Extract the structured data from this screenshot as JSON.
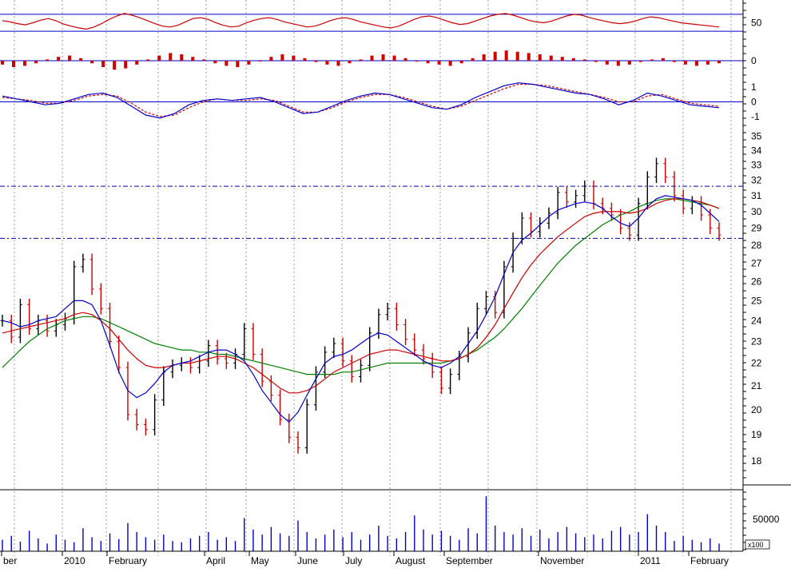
{
  "colors": {
    "background": "#ffffff",
    "price_up": "#000000",
    "price_down": "#cc0000",
    "ma_fast": "#0000cc",
    "ma_mid": "#cc0000",
    "ma_slow": "#008000",
    "osc_line": "#cc0000",
    "macd_line": "#0000cc",
    "macd_signal": "#cc0000",
    "histogram": "#cc0000",
    "volume": "#0000cc",
    "grid": "#999999",
    "ref_lines": "#0000cc",
    "support_resistance": "#0000aa"
  },
  "chart_data": {
    "type": "line",
    "x_axis": {
      "labels": [
        "ber",
        "2010",
        "February",
        "April",
        "May",
        "June",
        "July",
        "August",
        "September",
        "November",
        "2011",
        "February"
      ]
    },
    "oscillator_panel": {
      "tick_labels": [
        "50"
      ],
      "reference_levels": [
        70,
        30
      ],
      "ylim": [
        0,
        100
      ],
      "values": [
        55,
        52,
        48,
        45,
        50,
        56,
        60,
        55,
        47,
        42,
        38,
        35,
        40,
        48,
        58,
        66,
        72,
        68,
        62,
        55,
        48,
        42,
        40,
        44,
        52,
        60,
        62,
        58,
        50,
        44,
        40,
        42,
        50,
        56,
        60,
        62,
        58,
        52,
        48,
        44,
        40,
        42,
        48,
        55,
        60,
        62,
        58,
        52,
        48,
        44,
        40,
        38,
        42,
        50,
        58,
        64,
        66,
        62,
        56,
        50,
        46,
        48,
        54,
        60,
        66,
        70,
        72,
        68,
        62,
        56,
        52,
        50,
        54,
        60,
        66,
        70,
        68,
        62,
        58,
        54,
        50,
        48,
        50,
        54,
        60,
        64,
        62,
        58,
        54,
        50,
        48,
        46,
        44,
        42,
        40
      ]
    },
    "histogram_panel": {
      "tick_labels": [
        "0"
      ],
      "ylim": [
        -1,
        1
      ],
      "values": [
        -0.3,
        -0.5,
        -0.4,
        -0.2,
        0.1,
        0.3,
        0.4,
        0.2,
        -0.2,
        -0.5,
        -0.7,
        -0.6,
        -0.3,
        0.1,
        0.4,
        0.6,
        0.5,
        0.3,
        0.1,
        -0.2,
        -0.4,
        -0.5,
        -0.3,
        0.0,
        0.3,
        0.5,
        0.4,
        0.2,
        -0.1,
        -0.3,
        -0.4,
        -0.2,
        0.1,
        0.4,
        0.5,
        0.4,
        0.2,
        0.0,
        -0.2,
        -0.3,
        -0.4,
        -0.2,
        0.2,
        0.5,
        0.7,
        0.8,
        0.7,
        0.6,
        0.5,
        0.4,
        0.3,
        0.2,
        0.1,
        -0.1,
        -0.3,
        -0.4,
        -0.3,
        -0.1,
        0.1,
        0.2,
        -0.1,
        -0.3,
        -0.4,
        -0.3,
        -0.2
      ]
    },
    "macd_panel": {
      "tick_labels": [
        "1",
        "0",
        "-1"
      ],
      "ylim": [
        -1.5,
        1.5
      ],
      "macd": [
        0.4,
        0.2,
        0.0,
        -0.2,
        -0.1,
        0.2,
        0.5,
        0.6,
        0.3,
        -0.3,
        -0.9,
        -1.1,
        -0.8,
        -0.2,
        0.1,
        0.2,
        0.1,
        0.2,
        0.3,
        0.0,
        -0.4,
        -0.8,
        -0.7,
        -0.3,
        0.1,
        0.4,
        0.6,
        0.5,
        0.2,
        -0.1,
        -0.4,
        -0.5,
        -0.2,
        0.3,
        0.7,
        1.1,
        1.3,
        1.2,
        1.0,
        0.8,
        0.6,
        0.5,
        0.2,
        -0.2,
        0.1,
        0.6,
        0.4,
        0.1,
        -0.2,
        -0.3,
        -0.4
      ],
      "signal": [
        0.3,
        0.2,
        0.1,
        -0.1,
        -0.1,
        0.1,
        0.4,
        0.5,
        0.4,
        -0.1,
        -0.7,
        -1.0,
        -0.9,
        -0.4,
        0.0,
        0.2,
        0.1,
        0.1,
        0.2,
        0.1,
        -0.3,
        -0.7,
        -0.7,
        -0.4,
        0.0,
        0.3,
        0.5,
        0.5,
        0.3,
        0.0,
        -0.3,
        -0.5,
        -0.3,
        0.1,
        0.5,
        0.9,
        1.2,
        1.2,
        1.1,
        0.9,
        0.7,
        0.5,
        0.3,
        0.0,
        0.0,
        0.4,
        0.5,
        0.2,
        -0.1,
        -0.2,
        -0.3
      ]
    },
    "price_panel": {
      "tick_labels": [
        "35",
        "34",
        "33",
        "32",
        "31",
        "30",
        "29",
        "28",
        "27",
        "26",
        "25",
        "24",
        "23",
        "22",
        "21",
        "20",
        "19",
        "18"
      ],
      "ylim": [
        17.2,
        35.5
      ],
      "log_scale": true,
      "support_level": 28.4,
      "resistance_level": 31.6,
      "close": [
        24.0,
        23.2,
        24.8,
        23.6,
        24.0,
        23.5,
        23.8,
        24.1,
        26.8,
        27.2,
        25.6,
        24.6,
        23.0,
        21.8,
        19.8,
        19.4,
        19.2,
        20.4,
        21.6,
        21.9,
        22.0,
        21.8,
        22.1,
        22.8,
        22.2,
        22.0,
        22.4,
        23.6,
        22.4,
        21.2,
        20.6,
        19.6,
        18.9,
        18.5,
        20.2,
        21.6,
        22.5,
        22.9,
        22.1,
        21.4,
        21.9,
        23.4,
        24.3,
        24.6,
        23.8,
        23.1,
        22.6,
        22.2,
        21.6,
        20.9,
        21.5,
        22.3,
        23.4,
        24.6,
        25.2,
        24.4,
        26.8,
        28.4,
        29.6,
        28.8,
        29.3,
        29.9,
        31.2,
        30.6,
        31.0,
        31.6,
        30.5,
        30.2,
        29.8,
        29.0,
        28.6,
        30.5,
        32.2,
        33.1,
        32.2,
        31.0,
        30.2,
        30.6,
        29.8,
        29.0,
        28.6
      ],
      "ma_fast": [
        24.0,
        23.9,
        23.7,
        23.8,
        24.0,
        24.1,
        24.2,
        24.6,
        25.0,
        25.0,
        24.8,
        24.0,
        22.8,
        21.6,
        20.8,
        20.5,
        20.7,
        21.1,
        21.6,
        21.9,
        22.0,
        22.1,
        22.3,
        22.5,
        22.6,
        22.6,
        22.4,
        22.1,
        21.5,
        20.8,
        20.3,
        19.8,
        19.5,
        19.9,
        20.6,
        21.3,
        22.0,
        22.3,
        22.4,
        22.6,
        22.9,
        23.2,
        23.4,
        23.3,
        23.0,
        22.7,
        22.4,
        22.1,
        21.9,
        21.8,
        22.0,
        22.3,
        22.9,
        23.5,
        24.3,
        25.2,
        26.4,
        27.6,
        28.3,
        28.7,
        29.2,
        29.7,
        30.1,
        30.3,
        30.5,
        30.6,
        30.5,
        30.2,
        29.7,
        29.3,
        29.1,
        29.6,
        30.3,
        30.8,
        31.0,
        30.9,
        30.8,
        30.7,
        30.4,
        29.9,
        29.4
      ],
      "ma_mid": [
        23.4,
        23.5,
        23.6,
        23.7,
        23.8,
        23.9,
        24.0,
        24.1,
        24.3,
        24.4,
        24.3,
        24.0,
        23.6,
        23.1,
        22.6,
        22.2,
        21.9,
        21.8,
        21.8,
        21.9,
        22.0,
        22.0,
        22.1,
        22.2,
        22.3,
        22.3,
        22.2,
        22.0,
        21.8,
        21.5,
        21.2,
        20.9,
        20.7,
        20.7,
        20.8,
        21.0,
        21.3,
        21.6,
        21.8,
        22.0,
        22.2,
        22.4,
        22.5,
        22.6,
        22.6,
        22.5,
        22.4,
        22.3,
        22.2,
        22.1,
        22.1,
        22.2,
        22.4,
        22.7,
        23.2,
        23.8,
        24.6,
        25.4,
        26.2,
        26.9,
        27.5,
        28.0,
        28.5,
        28.9,
        29.3,
        29.7,
        29.9,
        30.0,
        30.0,
        30.0,
        29.9,
        30.0,
        30.2,
        30.5,
        30.7,
        30.8,
        30.8,
        30.7,
        30.6,
        30.4,
        30.2
      ],
      "ma_slow": [
        21.8,
        22.2,
        22.6,
        23.0,
        23.3,
        23.6,
        23.8,
        24.0,
        24.1,
        24.2,
        24.2,
        24.1,
        23.9,
        23.7,
        23.5,
        23.3,
        23.1,
        22.9,
        22.8,
        22.7,
        22.6,
        22.6,
        22.5,
        22.5,
        22.4,
        22.4,
        22.3,
        22.2,
        22.1,
        22.0,
        21.9,
        21.8,
        21.7,
        21.6,
        21.5,
        21.5,
        21.5,
        21.5,
        21.6,
        21.6,
        21.7,
        21.8,
        21.9,
        22.0,
        22.0,
        22.0,
        22.0,
        22.0,
        22.0,
        22.0,
        22.1,
        22.2,
        22.4,
        22.6,
        22.9,
        23.2,
        23.6,
        24.1,
        24.6,
        25.2,
        25.8,
        26.4,
        27.0,
        27.5,
        28.0,
        28.4,
        28.8,
        29.2,
        29.5,
        29.8,
        30.0,
        30.3,
        30.5,
        30.7,
        30.8,
        30.8,
        30.7,
        30.6,
        30.5,
        30.4,
        30.2
      ]
    },
    "volume_panel": {
      "tick_labels": [
        "50000"
      ],
      "unit_label": "x100",
      "ylim": [
        0,
        90000
      ],
      "values": [
        18000,
        24000,
        15000,
        32000,
        20000,
        12000,
        26000,
        18000,
        14000,
        36000,
        22000,
        16000,
        28000,
        19000,
        44000,
        30000,
        22000,
        18000,
        26000,
        16000,
        14000,
        20000,
        24000,
        30000,
        18000,
        22000,
        16000,
        52000,
        34000,
        26000,
        38000,
        28000,
        24000,
        48000,
        30000,
        20000,
        26000,
        34000,
        22000,
        30000,
        18000,
        26000,
        40000,
        24000,
        20000,
        30000,
        56000,
        34000,
        26000,
        32000,
        24000,
        18000,
        36000,
        28000,
        86000,
        40000,
        30000,
        26000,
        36000,
        24000,
        34000,
        20000,
        30000,
        38000,
        28000,
        22000,
        26000,
        20000,
        32000,
        38000,
        26000,
        30000,
        58000,
        40000,
        30000,
        16000,
        24000,
        18000,
        14000,
        20000,
        12000
      ]
    }
  }
}
